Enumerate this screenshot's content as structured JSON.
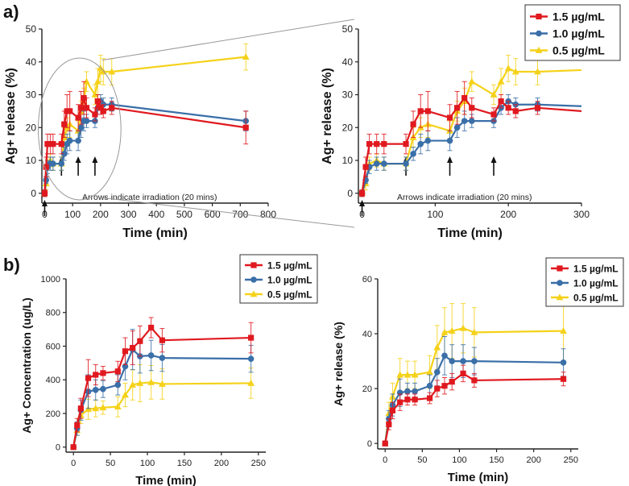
{
  "figure": {
    "panel_a_label": "a)",
    "panel_b_label": "b)"
  },
  "legend": {
    "series_names": [
      "1.5 µg/mL",
      "1.0 µg/mL",
      "0.5 µg/mL"
    ]
  },
  "colors": {
    "s15": "#e0191f",
    "s10": "#3a6fa8",
    "s05": "#f5d21a"
  },
  "chart_data": [
    {
      "type": "line",
      "id": "a-left",
      "xlabel": "Time (min)",
      "ylabel": "Ag+ release (%)",
      "xlim": [
        -10,
        800
      ],
      "ylim": [
        -3,
        50
      ],
      "xticks": [
        0,
        100,
        200,
        300,
        400,
        500,
        600,
        700,
        800
      ],
      "yticks": [
        0,
        10,
        20,
        30,
        40,
        50
      ],
      "annotation": "Arrows indicate irradiation (20 mins)",
      "arrows_at_x": [
        0,
        60,
        120,
        180
      ],
      "legend": false,
      "series": [
        {
          "name": "1.5 µg/mL",
          "color": "#e0191f",
          "marker": "square",
          "x": [
            0,
            5,
            10,
            20,
            30,
            60,
            70,
            80,
            90,
            120,
            130,
            140,
            150,
            180,
            190,
            200,
            210,
            240,
            720
          ],
          "y": [
            0,
            8,
            15,
            15,
            15,
            15,
            21,
            25,
            25,
            23,
            26,
            29,
            26,
            24,
            28,
            26,
            25,
            26,
            20
          ],
          "err": [
            1,
            3,
            3,
            3,
            3,
            3,
            4,
            5,
            6,
            4,
            5,
            5,
            3,
            2,
            2,
            2,
            2,
            2,
            5
          ]
        },
        {
          "name": "1.0 µg/mL",
          "color": "#3a6fa8",
          "marker": "circle",
          "x": [
            0,
            5,
            10,
            20,
            30,
            60,
            70,
            80,
            90,
            120,
            130,
            140,
            150,
            180,
            190,
            200,
            210,
            240,
            720
          ],
          "y": [
            0,
            4,
            8,
            9,
            9,
            9,
            12,
            15,
            16,
            16,
            20,
            22,
            22,
            22,
            26,
            28,
            27,
            27,
            22
          ],
          "err": [
            1,
            1,
            2,
            2,
            2,
            2,
            2,
            3,
            3,
            3,
            3,
            3,
            2,
            2,
            2,
            2,
            2,
            2,
            3
          ]
        },
        {
          "name": "0.5 µg/mL",
          "color": "#f5d21a",
          "marker": "triangle",
          "x": [
            0,
            5,
            10,
            20,
            30,
            60,
            70,
            80,
            90,
            120,
            130,
            140,
            150,
            180,
            190,
            200,
            210,
            240,
            720
          ],
          "y": [
            0,
            3,
            9,
            10,
            9,
            9,
            17,
            20,
            21,
            19,
            25,
            28,
            34,
            30,
            34,
            38,
            37,
            37,
            41.5
          ],
          "err": [
            1,
            2,
            2,
            2,
            2,
            2,
            3,
            3,
            4,
            3,
            3,
            4,
            3,
            3,
            4,
            4,
            4,
            4,
            4
          ]
        }
      ]
    },
    {
      "type": "line",
      "id": "a-right",
      "xlabel": "Time (min)",
      "ylabel": "Ag+ release (%)",
      "xlim": [
        -5,
        300
      ],
      "ylim": [
        -3,
        50
      ],
      "xticks": [
        0,
        100,
        200,
        300
      ],
      "yticks": [
        0,
        10,
        20,
        30,
        40,
        50
      ],
      "annotation": "Arrows indicate irradiation (20 mins)",
      "arrows_at_x": [
        0,
        60,
        120,
        180
      ],
      "legend": true,
      "series": [
        {
          "name": "1.5 µg/mL",
          "color": "#e0191f",
          "marker": "square",
          "x": [
            0,
            5,
            10,
            20,
            30,
            60,
            70,
            80,
            90,
            120,
            130,
            140,
            150,
            180,
            190,
            200,
            210,
            240,
            300
          ],
          "y": [
            0,
            8,
            15,
            15,
            15,
            15,
            21,
            25,
            25,
            23,
            26,
            29,
            26,
            24,
            28,
            26,
            25,
            26,
            25
          ],
          "err": [
            1,
            3,
            3,
            3,
            3,
            3,
            4,
            5,
            6,
            4,
            5,
            5,
            3,
            2,
            2,
            2,
            2,
            2,
            0
          ]
        },
        {
          "name": "1.0 µg/mL",
          "color": "#3a6fa8",
          "marker": "circle",
          "x": [
            0,
            5,
            10,
            20,
            30,
            60,
            70,
            80,
            90,
            120,
            130,
            140,
            150,
            180,
            190,
            200,
            210,
            240,
            300
          ],
          "y": [
            0,
            4,
            8,
            9,
            9,
            9,
            12,
            15,
            16,
            16,
            20,
            22,
            22,
            22,
            26,
            28,
            27,
            27,
            26.5
          ],
          "err": [
            1,
            1,
            2,
            2,
            2,
            2,
            2,
            3,
            3,
            3,
            3,
            3,
            2,
            2,
            2,
            2,
            2,
            2,
            0
          ]
        },
        {
          "name": "0.5 µg/mL",
          "color": "#f5d21a",
          "marker": "triangle",
          "x": [
            0,
            5,
            10,
            20,
            30,
            60,
            70,
            80,
            90,
            120,
            130,
            140,
            150,
            180,
            190,
            200,
            210,
            240,
            300
          ],
          "y": [
            0,
            3,
            9,
            10,
            9,
            9,
            17,
            20,
            21,
            19,
            25,
            28,
            34,
            30,
            34,
            38,
            37,
            37,
            37.5
          ],
          "err": [
            1,
            2,
            2,
            2,
            2,
            2,
            3,
            3,
            4,
            3,
            3,
            4,
            3,
            3,
            4,
            4,
            4,
            4,
            0
          ]
        }
      ]
    },
    {
      "type": "line",
      "id": "b-left",
      "xlabel": "Time (min)",
      "ylabel": "Ag+ Concentration (ug/L)",
      "xlim": [
        -10,
        260
      ],
      "ylim": [
        -30,
        1000
      ],
      "xticks": [
        0,
        50,
        100,
        150,
        200,
        250
      ],
      "yticks": [
        0,
        200,
        400,
        600,
        800,
        1000
      ],
      "legend": true,
      "series": [
        {
          "name": "1.5 µg/mL",
          "color": "#e0191f",
          "marker": "square",
          "x": [
            0,
            5,
            10,
            20,
            30,
            40,
            60,
            70,
            80,
            90,
            105,
            120,
            240
          ],
          "y": [
            0,
            130,
            230,
            410,
            430,
            440,
            450,
            570,
            590,
            630,
            710,
            635,
            650
          ],
          "err": [
            5,
            40,
            60,
            110,
            60,
            40,
            60,
            80,
            100,
            90,
            60,
            70,
            90
          ]
        },
        {
          "name": "1.0 µg/mL",
          "color": "#3a6fa8",
          "marker": "circle",
          "x": [
            0,
            5,
            10,
            20,
            30,
            40,
            60,
            70,
            80,
            90,
            105,
            120,
            240
          ],
          "y": [
            0,
            110,
            220,
            330,
            340,
            345,
            370,
            480,
            580,
            540,
            545,
            530,
            525
          ],
          "err": [
            5,
            40,
            60,
            100,
            60,
            50,
            60,
            80,
            120,
            100,
            90,
            80,
            80
          ]
        },
        {
          "name": "0.5 µg/mL",
          "color": "#f5d21a",
          "marker": "triangle",
          "x": [
            0,
            5,
            10,
            20,
            30,
            40,
            60,
            70,
            80,
            90,
            105,
            120,
            240
          ],
          "y": [
            0,
            100,
            190,
            225,
            230,
            235,
            240,
            310,
            370,
            380,
            385,
            375,
            380
          ],
          "err": [
            5,
            30,
            50,
            60,
            50,
            40,
            60,
            70,
            90,
            110,
            100,
            90,
            90
          ]
        }
      ]
    },
    {
      "type": "line",
      "id": "b-right",
      "xlabel": "Time (min)",
      "ylabel": "Ag+ release (%)",
      "xlim": [
        -10,
        260
      ],
      "ylim": [
        -2,
        60
      ],
      "xticks": [
        0,
        50,
        100,
        150,
        200,
        250
      ],
      "yticks": [
        0,
        20,
        40,
        60
      ],
      "legend": true,
      "series": [
        {
          "name": "1.5 µg/mL",
          "color": "#e0191f",
          "marker": "square",
          "x": [
            0,
            5,
            10,
            20,
            30,
            40,
            60,
            70,
            80,
            90,
            105,
            120,
            240
          ],
          "y": [
            0,
            7,
            12,
            15,
            16,
            16,
            16.5,
            20,
            21,
            22.5,
            25.5,
            23,
            23.5
          ],
          "err": [
            0.5,
            2,
            3,
            3,
            2,
            2,
            2,
            3,
            3,
            3,
            3,
            2.5,
            2.5
          ]
        },
        {
          "name": "1.0 µg/mL",
          "color": "#3a6fa8",
          "marker": "circle",
          "x": [
            0,
            5,
            10,
            20,
            30,
            40,
            60,
            70,
            80,
            90,
            105,
            120,
            240
          ],
          "y": [
            0,
            9,
            14,
            18.5,
            19,
            19,
            21,
            26,
            32,
            30,
            30,
            30,
            29.5
          ],
          "err": [
            0.5,
            3,
            4,
            5,
            3,
            3,
            4,
            5,
            7,
            6,
            6,
            5,
            5
          ]
        },
        {
          "name": "0.5 µg/mL",
          "color": "#f5d21a",
          "marker": "triangle",
          "x": [
            0,
            5,
            10,
            20,
            30,
            40,
            60,
            70,
            80,
            90,
            105,
            120,
            240
          ],
          "y": [
            0,
            11,
            17,
            25,
            25,
            25,
            26,
            35,
            40.5,
            41,
            42,
            40.5,
            41
          ],
          "err": [
            0.5,
            4,
            5,
            6,
            5,
            5,
            6,
            8,
            9,
            10,
            9,
            9,
            11
          ]
        }
      ]
    }
  ]
}
